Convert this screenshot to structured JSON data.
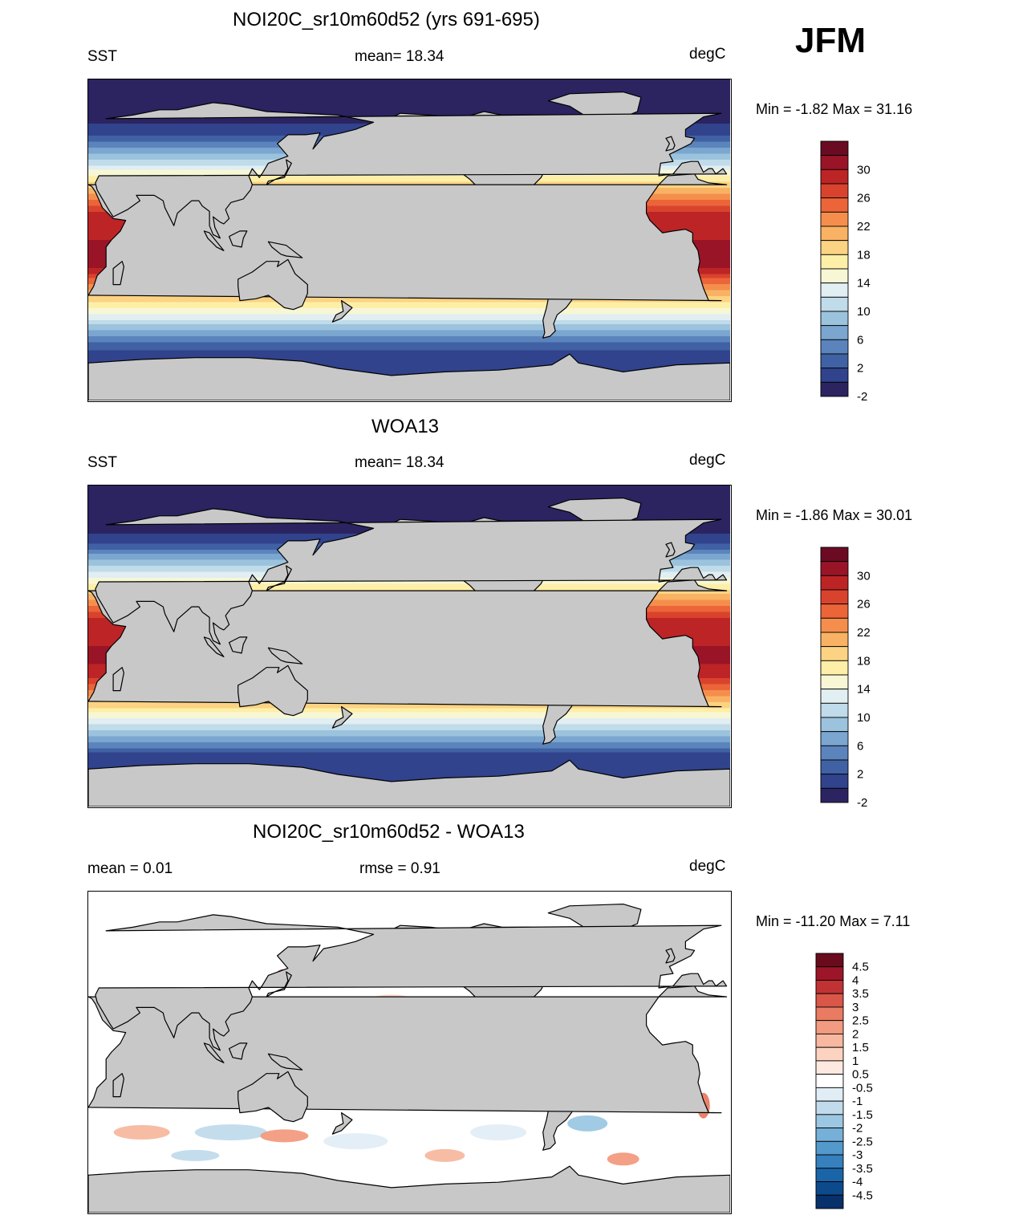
{
  "season": "JFM",
  "panels": [
    {
      "title": "NOI20C_sr10m60d52 (yrs 691-695)",
      "left_label": "SST",
      "center_label": "mean=  18.34",
      "right_label": "degC",
      "minmax": "Min =  -1.82 Max =  31.16"
    },
    {
      "title": "WOA13",
      "left_label": "SST",
      "center_label": "mean=  18.34",
      "right_label": "degC",
      "minmax": "Min =  -1.86 Max =  30.01"
    },
    {
      "title": "NOI20C_sr10m60d52 - WOA13",
      "left_label": "mean =   0.01",
      "center_label": "rmse =   0.91",
      "right_label": "degC",
      "minmax": "Min = -11.20 Max =   7.11"
    }
  ],
  "chart_data": [
    {
      "type": "heatmap",
      "title": "NOI20C_sr10m60d52 (yrs 691-695)",
      "variable": "SST",
      "units": "degC",
      "mean": 18.34,
      "min": -1.82,
      "max": 31.16,
      "colorbar_levels": [
        -2,
        0,
        2,
        4,
        6,
        8,
        10,
        12,
        14,
        16,
        18,
        20,
        22,
        24,
        26,
        28,
        30
      ],
      "colorbar_labels": [
        "30",
        "26",
        "22",
        "18",
        "14",
        "10",
        "6",
        "2",
        "-2"
      ],
      "colors": [
        "#2b2461",
        "#31438c",
        "#4061a4",
        "#5b84bd",
        "#7aa6cf",
        "#9cc3dd",
        "#c0dbe9",
        "#e1eef2",
        "#f7f7d5",
        "#fdefa8",
        "#fbd383",
        "#f9b263",
        "#f58e4c",
        "#eb6539",
        "#d9432d",
        "#bd2426",
        "#9a1428",
        "#6b0b23"
      ]
    },
    {
      "type": "heatmap",
      "title": "WOA13",
      "variable": "SST",
      "units": "degC",
      "mean": 18.34,
      "min": -1.86,
      "max": 30.01,
      "colorbar_levels": [
        -2,
        0,
        2,
        4,
        6,
        8,
        10,
        12,
        14,
        16,
        18,
        20,
        22,
        24,
        26,
        28,
        30
      ],
      "colorbar_labels": [
        "30",
        "26",
        "22",
        "18",
        "14",
        "10",
        "6",
        "2",
        "-2"
      ],
      "colors": [
        "#2b2461",
        "#31438c",
        "#4061a4",
        "#5b84bd",
        "#7aa6cf",
        "#9cc3dd",
        "#c0dbe9",
        "#e1eef2",
        "#f7f7d5",
        "#fdefa8",
        "#fbd383",
        "#f9b263",
        "#f58e4c",
        "#eb6539",
        "#d9432d",
        "#bd2426",
        "#9a1428",
        "#6b0b23"
      ]
    },
    {
      "type": "heatmap",
      "title": "NOI20C_sr10m60d52 - WOA13",
      "units": "degC",
      "mean": 0.01,
      "rmse": 0.91,
      "min": -11.2,
      "max": 7.11,
      "colorbar_levels": [
        -4.5,
        -4,
        -3.5,
        -3,
        -2.5,
        -2,
        -1.5,
        -1,
        -0.5,
        0.5,
        1,
        1.5,
        2,
        2.5,
        3,
        3.5,
        4,
        4.5
      ],
      "colorbar_labels": [
        "4.5",
        "4",
        "3.5",
        "3",
        "2.5",
        "2",
        "1.5",
        "1",
        "0.5",
        "-0.5",
        "-1",
        "-1.5",
        "-2",
        "-2.5",
        "-3",
        "-3.5",
        "-4",
        "-4.5"
      ],
      "colors": [
        "#08306b",
        "#0d4a8c",
        "#1a65a8",
        "#3580bd",
        "#5499cb",
        "#76b0d8",
        "#9cc7e3",
        "#c1dbec",
        "#e1edf5",
        "#ffffff",
        "#fde9df",
        "#fbd3c0",
        "#f7b89f",
        "#f29b80",
        "#e97b62",
        "#d95648",
        "#c13234",
        "#9c1528",
        "#6a0a1d"
      ]
    }
  ]
}
